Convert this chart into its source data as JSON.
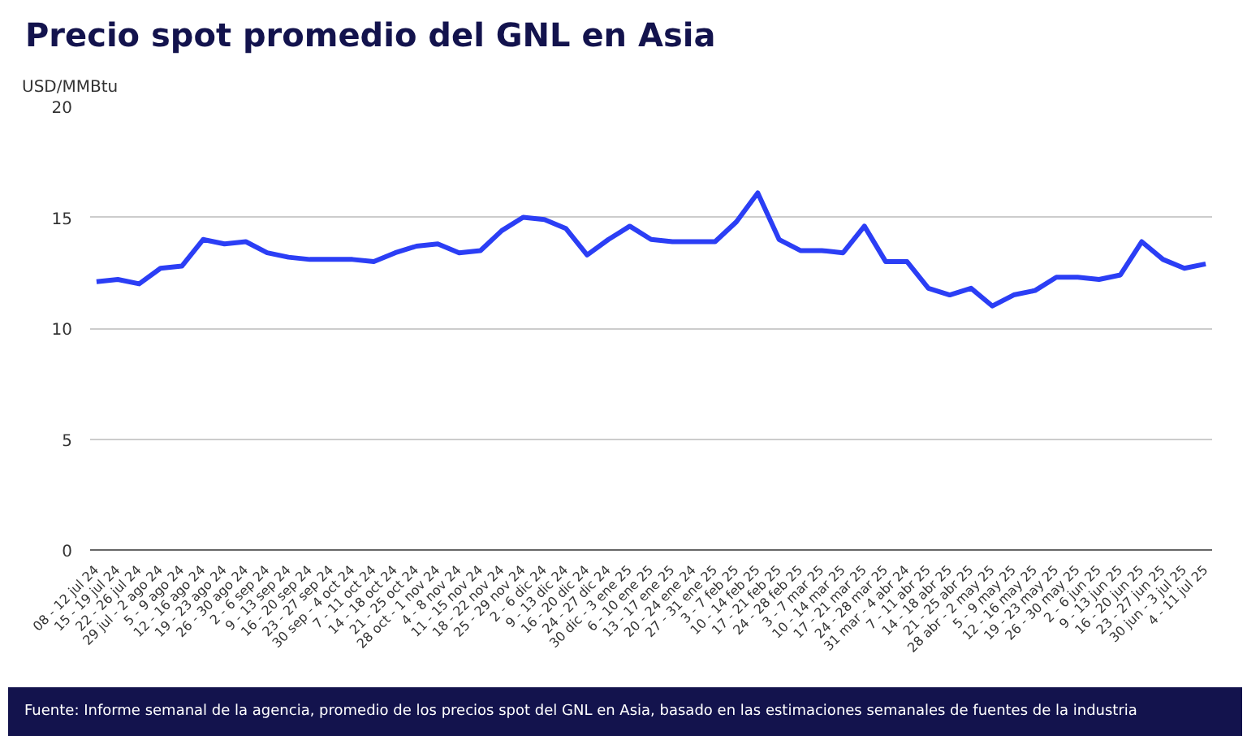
{
  "chart_data": {
    "type": "line",
    "title": "Precio spot promedio del GNL en Asia",
    "ylabel": "USD/MMBtu",
    "categories": [
      "08 - 12 jul 24",
      "15 - 19 jul 24",
      "22 - 26 jul 24",
      "29 jul - 2 ago 24",
      "5 - 9 ago 24",
      "12 - 16 ago 24",
      "19 - 23 ago 24",
      "26 - 30 ago 24",
      "2 - 6 sep 24",
      "9 - 13 sep 24",
      "16 - 20 sep 24",
      "23 - 27 sep 24",
      "30 sep - 4 oct 24",
      "7 - 11 oct 24",
      "14 - 18 oct 24",
      "21 - 25 oct 24",
      "28 oct - 1 nov 24",
      "4 - 8 nov 24",
      "11 - 15 nov 24",
      "18 - 22 nov 24",
      "25 - 29 nov 24",
      "2 - 6 dic 24",
      "9 - 13 dic 24",
      "16 - 20 dic 24",
      "24 - 27 dic 24",
      "30 dic - 3 ene 25",
      "6 - 10 ene 25",
      "13 - 17 ene 25",
      "20 - 24 ene 24",
      "27 - 31 ene 25",
      "3 - 7 feb 25",
      "10 - 14 feb 25",
      "17 - 21 feb 25",
      "24 - 28 feb 25",
      "3 - 7 mar 25",
      "10 - 14 mar 25",
      "17 - 21 mar 25",
      "24 - 28 mar 25",
      "31 mar - 4 abr 24",
      "7 - 11 abr 25",
      "14 - 18 abr 25",
      "21 - 25 abr 25",
      "28 abr - 2 may 25",
      "5 - 9 may 25",
      "12 - 16 may 25",
      "19 - 23 may 25",
      "26 - 30 may 25",
      "2 - 6 jun 25",
      "9 - 13 jun 25",
      "16 - 20 jun 25",
      "23 - 27 jun 25",
      "30 jun - 3 jul 25",
      "4 - 11 jul 25"
    ],
    "series": [
      {
        "color": "#2b3ef5",
        "values": [
          12.1,
          12.2,
          12.0,
          12.7,
          12.8,
          14.0,
          13.8,
          13.9,
          13.4,
          13.2,
          13.1,
          13.1,
          13.1,
          13.0,
          13.4,
          13.7,
          13.8,
          13.4,
          13.5,
          14.4,
          15.0,
          14.9,
          14.5,
          13.3,
          14.0,
          14.6,
          14.0,
          13.9,
          13.9,
          13.9,
          14.8,
          16.1,
          14.0,
          13.5,
          13.5,
          13.4,
          14.6,
          13.0,
          13.0,
          11.8,
          11.5,
          11.8,
          11.0,
          11.5,
          11.7,
          12.3,
          12.3,
          12.2,
          12.4,
          13.9,
          13.1,
          12.7,
          12.9
        ]
      }
    ],
    "ylim": [
      0,
      20
    ],
    "yticks": [
      0,
      5,
      10,
      15,
      20
    ],
    "grid": "y",
    "annotations": [
      "Fuente: Informe semanal de la agencia, promedio de los precios spot del GNL en Asia, basado en las estimaciones semanales de fuentes de la industria"
    ]
  }
}
